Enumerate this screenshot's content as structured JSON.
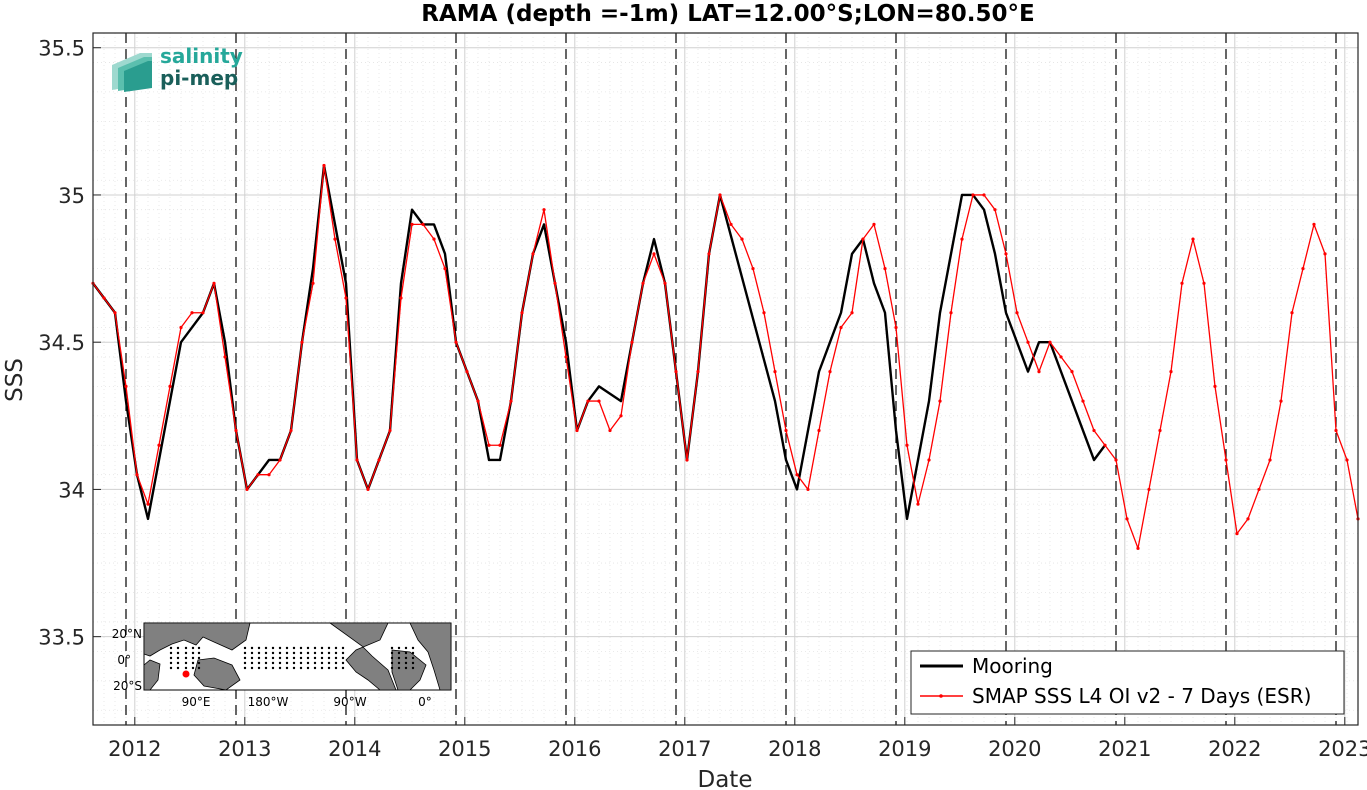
{
  "chart_data": {
    "type": "line",
    "title": "RAMA (depth =-1m) LAT=12.00°S;LON=80.50°E",
    "xlabel": "Date",
    "ylabel": "SSS",
    "xlim": [
      2011.7,
      2023.2
    ],
    "ylim": [
      33.2,
      35.55
    ],
    "x_ticks": [
      2012,
      2013,
      2014,
      2015,
      2016,
      2017,
      2018,
      2019,
      2020,
      2021,
      2022,
      2023
    ],
    "y_ticks": [
      33.5,
      34,
      34.5,
      35,
      35.5
    ],
    "y_tick_labels": [
      "33.5",
      "34",
      "34.5",
      "35",
      "35.5"
    ],
    "grid": true,
    "legend_position": "bottom-right",
    "year_markers": [
      2012,
      2013,
      2014,
      2015,
      2016,
      2017,
      2018,
      2019,
      2020,
      2021,
      2022,
      2023
    ],
    "series": [
      {
        "name": "Mooring",
        "color": "#000000",
        "x": [
          2011.7,
          2011.8,
          2011.9,
          2012.0,
          2012.1,
          2012.2,
          2012.3,
          2012.4,
          2012.5,
          2012.6,
          2012.7,
          2012.8,
          2012.9,
          2013.0,
          2013.1,
          2013.2,
          2013.3,
          2013.4,
          2013.5,
          2013.6,
          2013.7,
          2013.8,
          2013.9,
          2014.0,
          2014.1,
          2014.2,
          2014.3,
          2014.4,
          2014.5,
          2014.6,
          2014.7,
          2014.8,
          2014.9,
          2015.0,
          2015.1,
          2015.2,
          2015.3,
          2015.4,
          2015.5,
          2015.6,
          2015.7,
          2015.8,
          2015.9,
          2016.0,
          2016.1,
          2016.2,
          2016.3,
          2016.5,
          2016.6,
          2016.7,
          2016.8,
          2016.9,
          2017.0,
          2017.1,
          2017.2,
          2017.3,
          2017.4,
          2017.9,
          2018.0,
          2018.1,
          2018.2,
          2018.3,
          2018.4,
          2018.5,
          2018.6,
          2018.7,
          2018.8,
          2018.9,
          2019.0,
          2019.1,
          2019.2,
          2019.3,
          2019.4,
          2019.5,
          2019.6,
          2019.7,
          2019.8,
          2019.9,
          2020.0,
          2020.1,
          2020.2,
          2020.3,
          2020.4,
          2020.5,
          2020.6,
          2020.7,
          2020.8,
          2020.9
        ],
        "values": [
          34.7,
          34.65,
          34.6,
          34.3,
          34.05,
          33.9,
          34.1,
          34.3,
          34.5,
          34.55,
          34.6,
          34.7,
          34.5,
          34.2,
          34.0,
          34.05,
          34.1,
          34.1,
          34.2,
          34.5,
          34.75,
          35.1,
          34.9,
          34.7,
          34.1,
          34.0,
          34.1,
          34.2,
          34.7,
          34.95,
          34.9,
          34.9,
          34.8,
          34.5,
          34.4,
          34.3,
          34.1,
          34.1,
          34.3,
          34.6,
          34.8,
          34.9,
          34.7,
          34.5,
          34.2,
          34.3,
          34.35,
          34.3,
          34.5,
          34.7,
          34.85,
          34.7,
          34.4,
          34.1,
          34.4,
          34.8,
          35.0,
          34.3,
          34.1,
          34.0,
          34.2,
          34.4,
          34.5,
          34.6,
          34.8,
          34.85,
          34.7,
          34.6,
          34.2,
          33.9,
          34.1,
          34.3,
          34.6,
          34.8,
          35.0,
          35.0,
          34.95,
          34.8,
          34.6,
          34.5,
          34.4,
          34.5,
          34.5,
          34.4,
          34.3,
          34.2,
          34.1,
          34.15
        ]
      },
      {
        "name": "SMAP SSS L4 OI v2 - 7 Days (ESR)",
        "color": "#ff0000",
        "x": [
          2011.7,
          2011.8,
          2011.9,
          2012.0,
          2012.1,
          2012.2,
          2012.3,
          2012.4,
          2012.5,
          2012.6,
          2012.7,
          2012.8,
          2012.9,
          2013.0,
          2013.1,
          2013.2,
          2013.3,
          2013.4,
          2013.5,
          2013.6,
          2013.7,
          2013.8,
          2013.9,
          2014.0,
          2014.1,
          2014.2,
          2014.3,
          2014.4,
          2014.5,
          2014.6,
          2014.7,
          2014.8,
          2014.9,
          2015.0,
          2015.1,
          2015.2,
          2015.3,
          2015.4,
          2015.5,
          2015.6,
          2015.7,
          2015.8,
          2015.9,
          2016.0,
          2016.1,
          2016.2,
          2016.3,
          2016.4,
          2016.5,
          2016.6,
          2016.7,
          2016.8,
          2016.9,
          2017.0,
          2017.1,
          2017.2,
          2017.3,
          2017.4,
          2017.5,
          2017.6,
          2017.7,
          2017.8,
          2017.9,
          2018.0,
          2018.1,
          2018.2,
          2018.3,
          2018.4,
          2018.5,
          2018.6,
          2018.7,
          2018.8,
          2018.9,
          2019.0,
          2019.1,
          2019.2,
          2019.3,
          2019.4,
          2019.5,
          2019.6,
          2019.7,
          2019.8,
          2019.9,
          2020.0,
          2020.1,
          2020.2,
          2020.3,
          2020.4,
          2020.5,
          2020.6,
          2020.7,
          2020.8,
          2020.9,
          2021.0,
          2021.1,
          2021.2,
          2021.3,
          2021.4,
          2021.5,
          2021.6,
          2021.7,
          2021.8,
          2021.9,
          2022.0,
          2022.1,
          2022.2,
          2022.3,
          2022.4,
          2022.5,
          2022.6,
          2022.7,
          2022.8,
          2022.9,
          2023.0,
          2023.1,
          2023.2
        ],
        "values": [
          34.7,
          34.65,
          34.6,
          34.35,
          34.05,
          33.95,
          34.15,
          34.35,
          34.55,
          34.6,
          34.6,
          34.7,
          34.45,
          34.2,
          34.0,
          34.05,
          34.05,
          34.1,
          34.2,
          34.5,
          34.7,
          35.1,
          34.85,
          34.65,
          34.1,
          34.0,
          34.1,
          34.2,
          34.65,
          34.9,
          34.9,
          34.85,
          34.75,
          34.5,
          34.4,
          34.3,
          34.15,
          34.15,
          34.3,
          34.6,
          34.8,
          34.95,
          34.7,
          34.45,
          34.2,
          34.3,
          34.3,
          34.2,
          34.25,
          34.5,
          34.7,
          34.8,
          34.7,
          34.4,
          34.1,
          34.4,
          34.8,
          35.0,
          34.9,
          34.85,
          34.75,
          34.6,
          34.4,
          34.2,
          34.05,
          34.0,
          34.2,
          34.4,
          34.55,
          34.6,
          34.85,
          34.9,
          34.75,
          34.55,
          34.15,
          33.95,
          34.1,
          34.3,
          34.6,
          34.85,
          35.0,
          35.0,
          34.95,
          34.8,
          34.6,
          34.5,
          34.4,
          34.5,
          34.45,
          34.4,
          34.3,
          34.2,
          34.15,
          34.1,
          33.9,
          33.8,
          34.0,
          34.2,
          34.4,
          34.7,
          34.85,
          34.7,
          34.35,
          34.1,
          33.85,
          33.9,
          34.0,
          34.1,
          34.3,
          34.6,
          34.75,
          34.9,
          34.8,
          34.2,
          34.1,
          33.9
        ]
      }
    ]
  },
  "logo": {
    "line1": "salinity",
    "line2": "pi-mep",
    "color1": "#26a89a",
    "color2": "#1a5f5a"
  },
  "inset_map": {
    "lat_labels": [
      "20°N",
      "0°",
      "20°S"
    ],
    "lon_labels": [
      "90°E",
      "180°W",
      "90°W",
      "0°"
    ],
    "land_color": "#808080",
    "marker_color": "#ff0000"
  }
}
